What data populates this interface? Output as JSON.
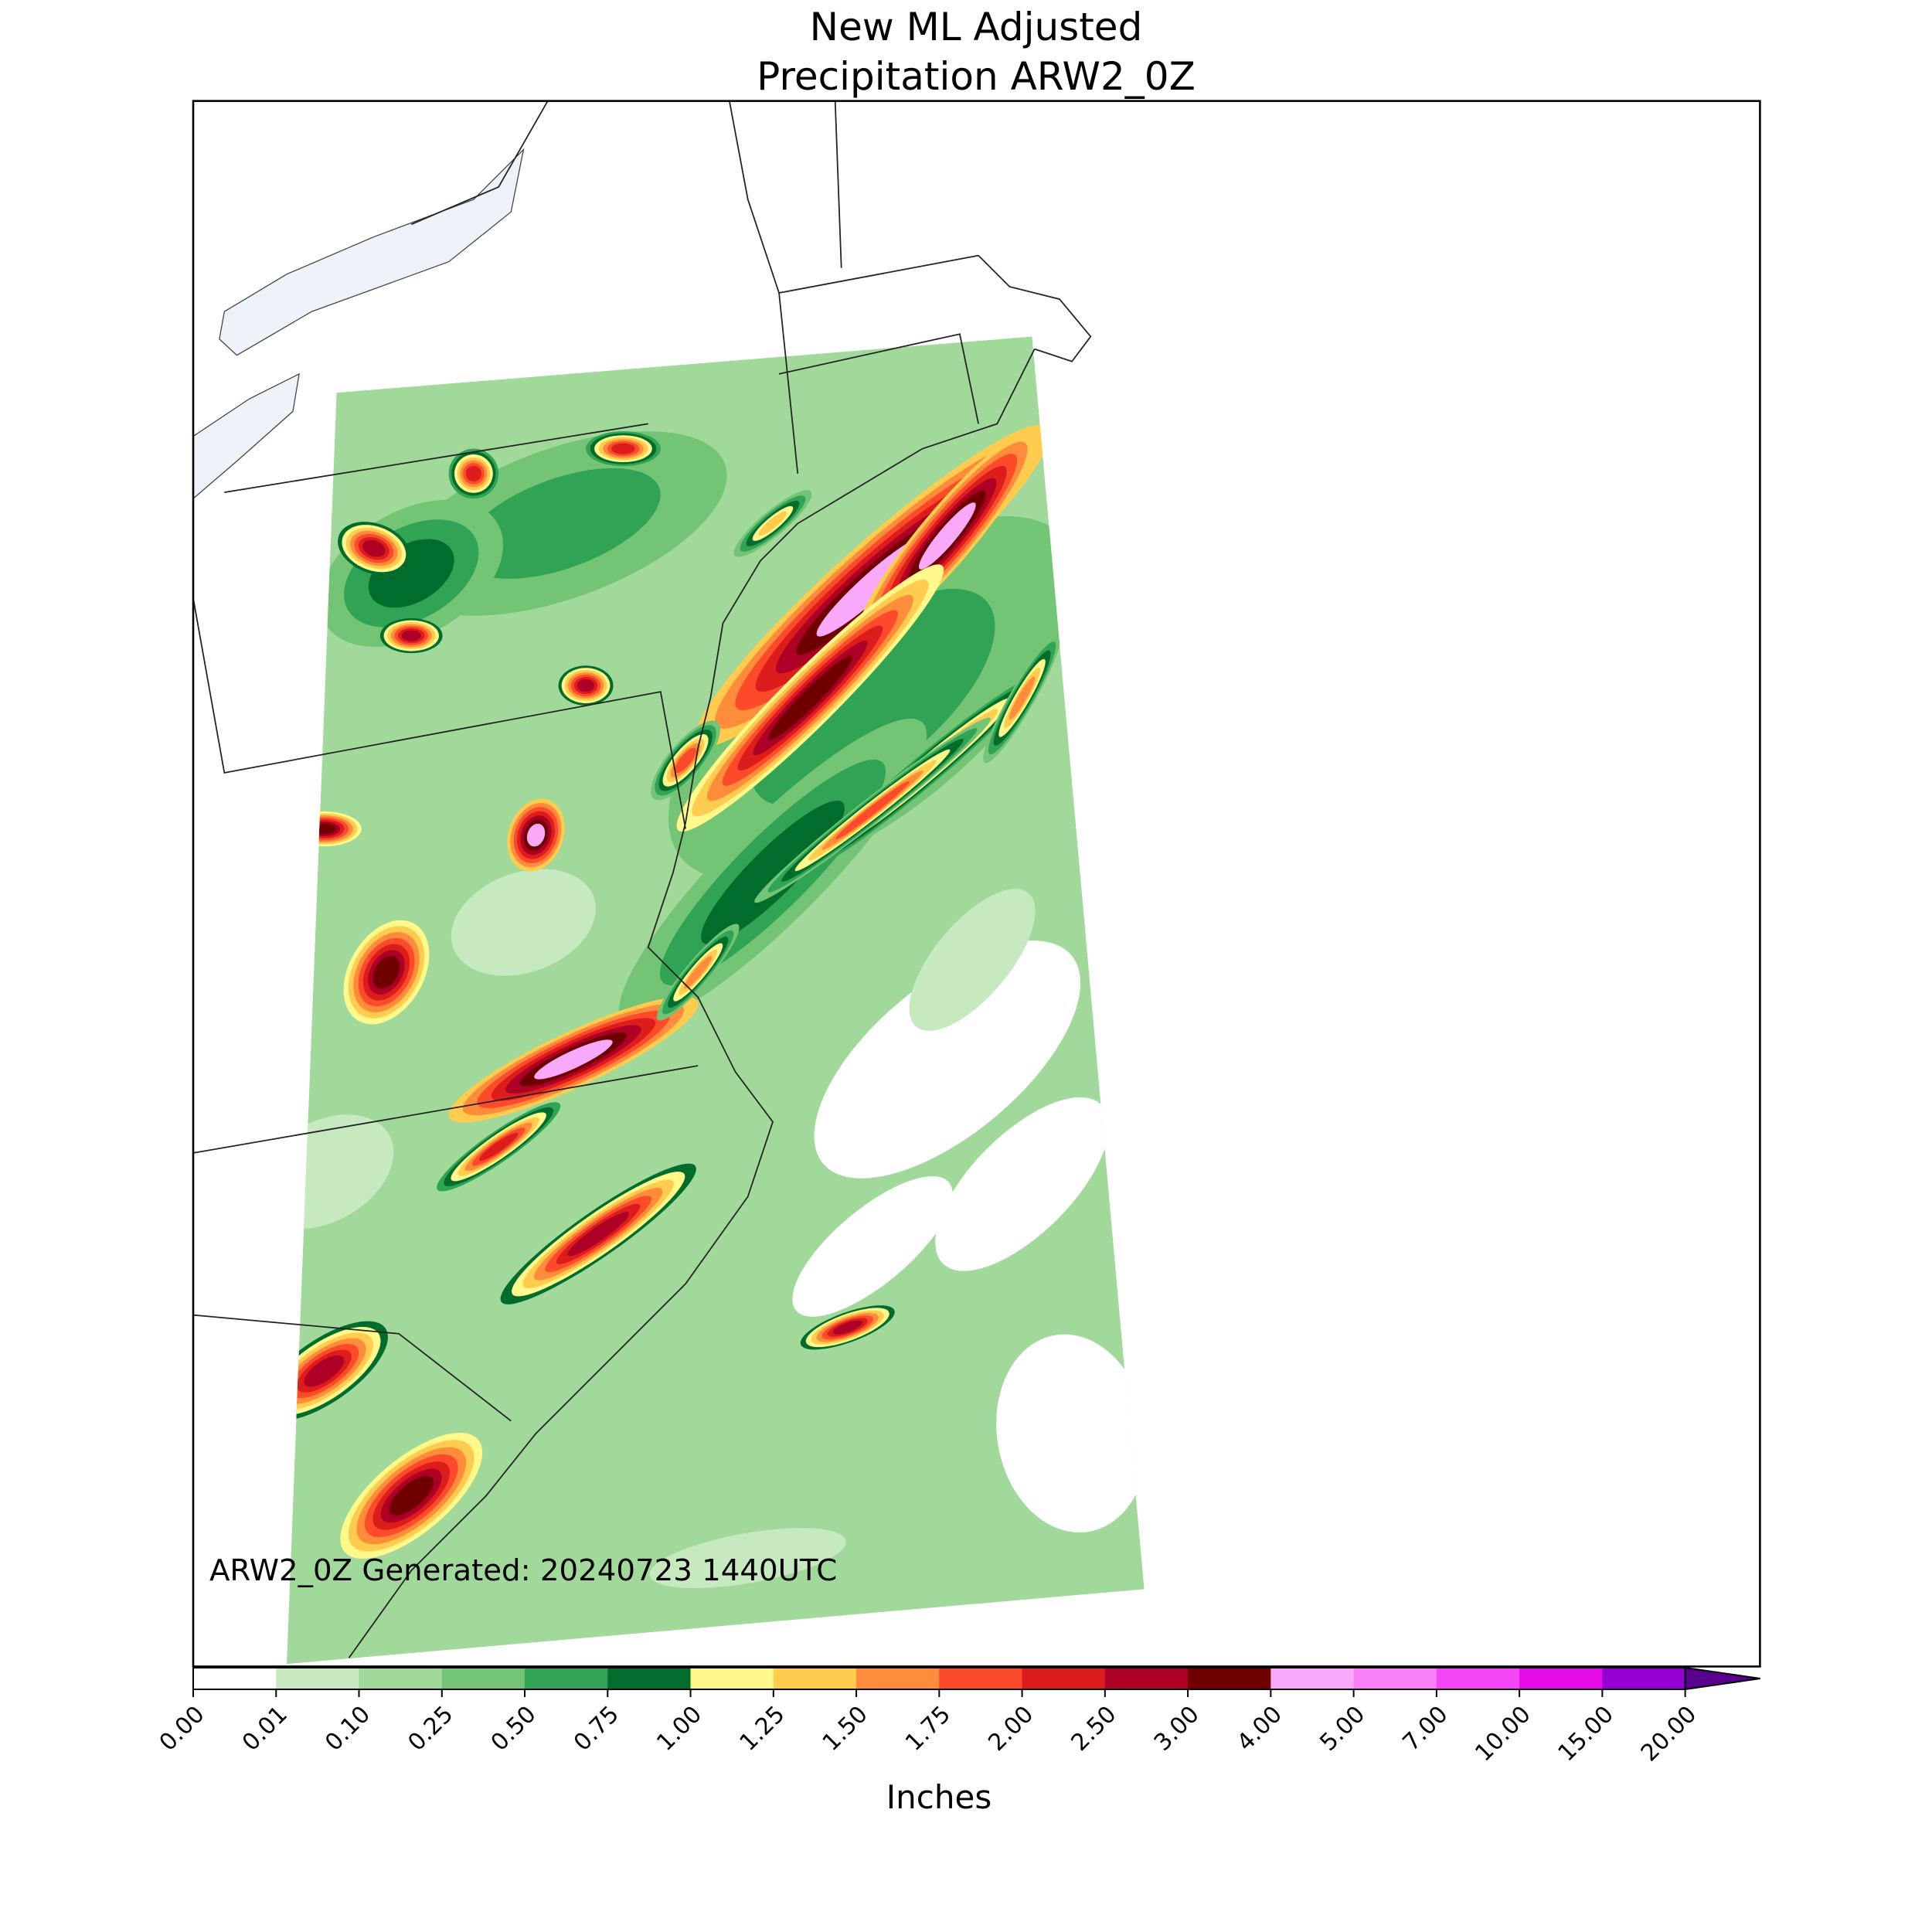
{
  "map": {
    "title_lines": [
      "New ML Adjusted",
      "Precipitation ARW2_0Z"
    ],
    "annotation": "ARW2_0Z Generated: 20240723 1440UTC",
    "colorbar": {
      "label": "Inches",
      "levels": [
        {
          "value": 0,
          "label": "0.00"
        },
        {
          "value": 0.01,
          "label": "0.01"
        },
        {
          "value": 0.1,
          "label": "0.10"
        },
        {
          "value": 0.25,
          "label": "0.25"
        },
        {
          "value": 0.5,
          "label": "0.50"
        },
        {
          "value": 0.75,
          "label": "0.75"
        },
        {
          "value": 1,
          "label": "1.00"
        },
        {
          "value": 1.25,
          "label": "1.25"
        },
        {
          "value": 1.5,
          "label": "1.50"
        },
        {
          "value": 1.75,
          "label": "1.75"
        },
        {
          "value": 2,
          "label": "2.00"
        },
        {
          "value": 2.5,
          "label": "2.50"
        },
        {
          "value": 3,
          "label": "3.00"
        },
        {
          "value": 4,
          "label": "4.00"
        },
        {
          "value": 5,
          "label": "5.00"
        },
        {
          "value": 7,
          "label": "7.00"
        },
        {
          "value": 10,
          "label": "10.00"
        },
        {
          "value": 15,
          "label": "15.00"
        },
        {
          "value": 20,
          "label": "20.00"
        }
      ],
      "colors": [
        "#ffffff",
        "#c7e9c0",
        "#a1d99b",
        "#74c476",
        "#31a354",
        "#006d2c",
        "#fff98b",
        "#ffcc4f",
        "#fe8c3a",
        "#fd4a2a",
        "#dd1c1c",
        "#ae0026",
        "#700000",
        "#f9a9f9",
        "#f77ff7",
        "#f446f4",
        "#e60ce6",
        "#9400d3"
      ],
      "extend_color": "#5a0090"
    }
  }
}
